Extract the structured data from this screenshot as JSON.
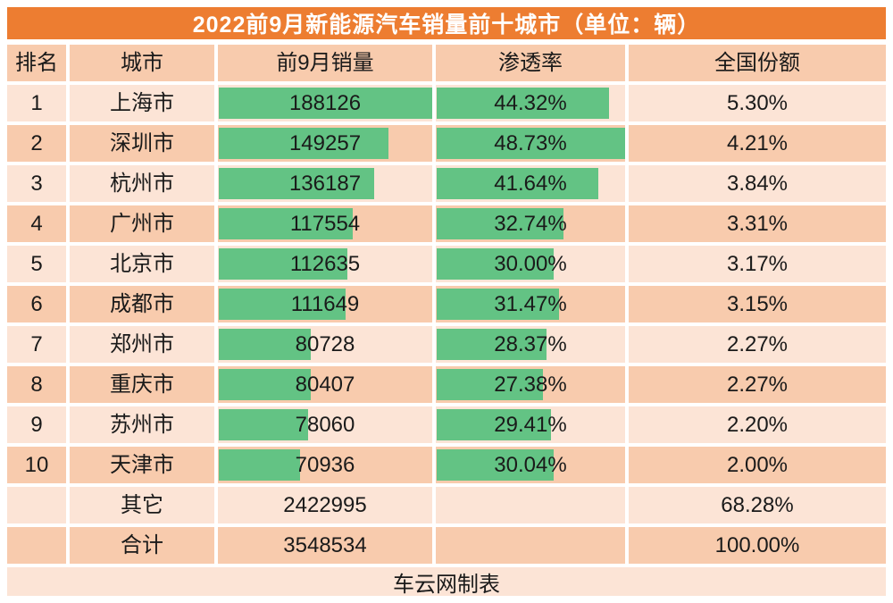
{
  "title": "2022前9月新能源汽车销量前十城市（单位：辆）",
  "columns": {
    "rank": "排名",
    "city": "城市",
    "sales": "前9月销量",
    "penetration": "渗透率",
    "share": "全国份额"
  },
  "rows": [
    {
      "rank": "1",
      "city": "上海市",
      "sales": "188126",
      "penetration": "44.32%",
      "share": "5.30%"
    },
    {
      "rank": "2",
      "city": "深圳市",
      "sales": "149257",
      "penetration": "48.73%",
      "share": "4.21%"
    },
    {
      "rank": "3",
      "city": "杭州市",
      "sales": "136187",
      "penetration": "41.64%",
      "share": "3.84%"
    },
    {
      "rank": "4",
      "city": "广州市",
      "sales": "117554",
      "penetration": "32.74%",
      "share": "3.31%"
    },
    {
      "rank": "5",
      "city": "北京市",
      "sales": "112635",
      "penetration": "30.00%",
      "share": "3.17%"
    },
    {
      "rank": "6",
      "city": "成都市",
      "sales": "111649",
      "penetration": "31.47%",
      "share": "3.15%"
    },
    {
      "rank": "7",
      "city": "郑州市",
      "sales": "80728",
      "penetration": "28.37%",
      "share": "2.27%"
    },
    {
      "rank": "8",
      "city": "重庆市",
      "sales": "80407",
      "penetration": "27.38%",
      "share": "2.27%"
    },
    {
      "rank": "9",
      "city": "苏州市",
      "sales": "78060",
      "penetration": "29.41%",
      "share": "2.20%"
    },
    {
      "rank": "10",
      "city": "天津市",
      "sales": "70936",
      "penetration": "30.04%",
      "share": "2.00%"
    },
    {
      "rank": "",
      "city": "其它",
      "sales": "2422995",
      "penetration": "",
      "share": "68.28%"
    },
    {
      "rank": "",
      "city": "合计",
      "sales": "3548534",
      "penetration": "",
      "share": "100.00%"
    }
  ],
  "bars": {
    "sales_max": 188126,
    "penetration_max": 48.73
  },
  "footer": "车云网制表",
  "colors": {
    "title_bg": "#ED7D31",
    "title_text": "#FFFFFF",
    "row_light": "#FCE4D6",
    "row_dark": "#F8CBAD",
    "bar_green": "#63C384",
    "text": "#1A1A1A"
  },
  "chart_data": {
    "type": "table",
    "title": "2022前9月新能源汽车销量前十城市（单位：辆）",
    "columns": [
      "排名",
      "城市",
      "前9月销量",
      "渗透率",
      "全国份额"
    ],
    "categories": [
      "上海市",
      "深圳市",
      "杭州市",
      "广州市",
      "北京市",
      "成都市",
      "郑州市",
      "重庆市",
      "苏州市",
      "天津市",
      "其它",
      "合计"
    ],
    "series": [
      {
        "name": "前9月销量(辆)",
        "values": [
          188126,
          149257,
          136187,
          117554,
          112635,
          111649,
          80728,
          80407,
          78060,
          70936,
          2422995,
          3548534
        ]
      },
      {
        "name": "渗透率(%)",
        "values": [
          44.32,
          48.73,
          41.64,
          32.74,
          30.0,
          31.47,
          28.37,
          27.38,
          29.41,
          30.04,
          null,
          null
        ]
      },
      {
        "name": "全国份额(%)",
        "values": [
          5.3,
          4.21,
          3.84,
          3.31,
          3.17,
          3.15,
          2.27,
          2.27,
          2.2,
          2.0,
          68.28,
          100.0
        ]
      }
    ],
    "data_bars": {
      "columns": [
        "前9月销量",
        "渗透率"
      ],
      "sales_scale_max": 188126,
      "penetration_scale_max": 48.73,
      "bar_color": "#63C384"
    },
    "credit": "车云网制表"
  }
}
